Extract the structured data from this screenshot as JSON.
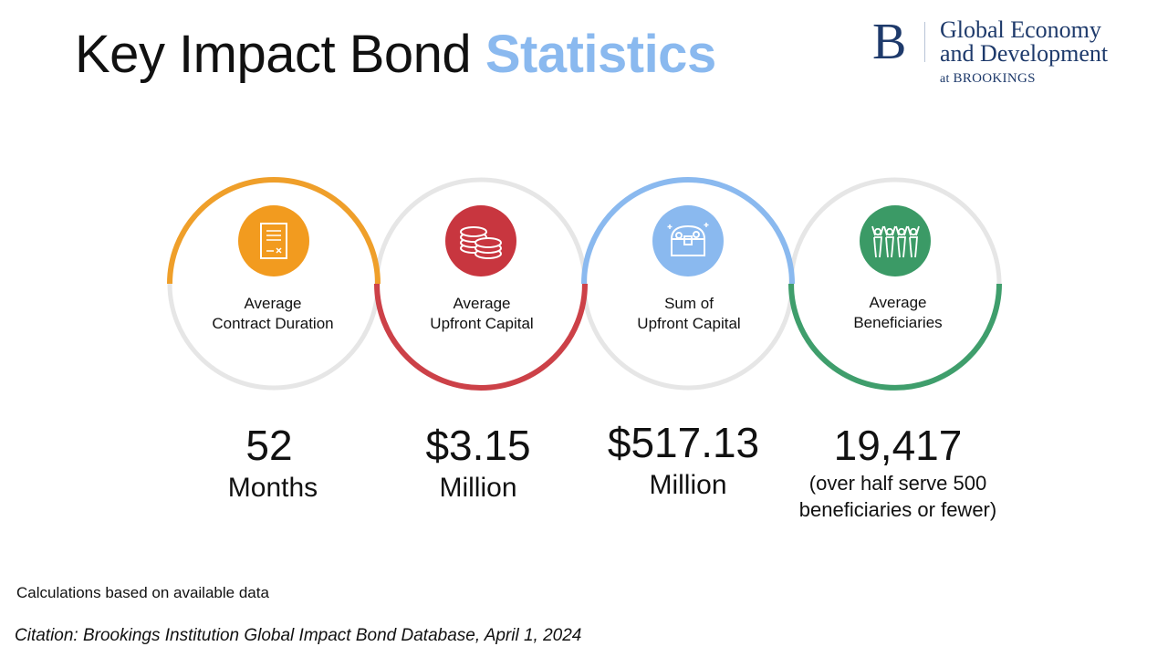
{
  "title": {
    "main": "Key Impact Bond ",
    "accent": "Statistics"
  },
  "logo": {
    "letter": "B",
    "line1": "Global Economy",
    "line2": "and Development",
    "sub_prefix": "at ",
    "sub_org": "BROOKINGS"
  },
  "stats": [
    {
      "label_line1": "Average",
      "label_line2": "Contract Duration",
      "value": "52",
      "unit": "Months",
      "note": "",
      "ring_color": "#ef9f2a",
      "icon_color": "#f29b1f",
      "icon": "contract-document-icon"
    },
    {
      "label_line1": "Average",
      "label_line2": "Upfront Capital",
      "value": "$3.15",
      "unit": "Million",
      "note": "",
      "ring_color": "#cc4148",
      "icon_color": "#c8363f",
      "icon": "coin-stack-icon"
    },
    {
      "label_line1": "Sum of",
      "label_line2": "Upfront Capital",
      "value": "$517.13",
      "unit": "Million",
      "note": "",
      "ring_color": "#8ab9ef",
      "icon_color": "#8ab9ef",
      "icon": "treasure-chest-icon"
    },
    {
      "label_line1": "Average",
      "label_line2": "Beneficiaries",
      "value": "19,417",
      "unit": "",
      "note_line1": "(over half serve 500",
      "note_line2": "beneficiaries or fewer)",
      "ring_color": "#3f9e6c",
      "icon_color": "#3b9a66",
      "icon": "people-group-icon"
    }
  ],
  "footnote": "Calculations based on available data",
  "citation": "Citation: Brookings Institution Global Impact Bond Database, April 1, 2024",
  "ring_base_color": "#e6e6e6"
}
